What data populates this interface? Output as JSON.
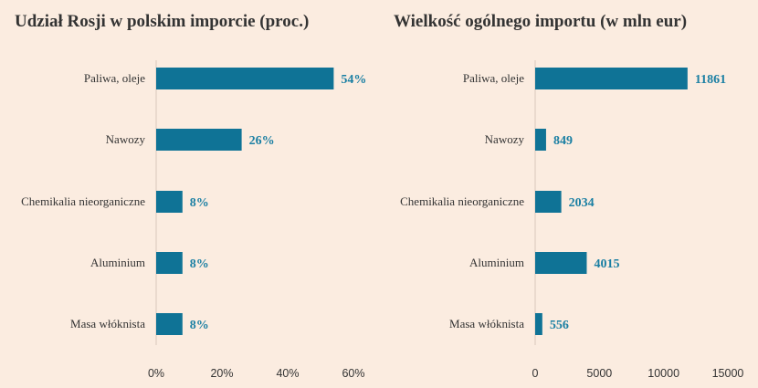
{
  "chart_data": [
    {
      "type": "bar",
      "orientation": "horizontal",
      "title": "Udział Rosji w polskim imporcie (proc.)",
      "categories": [
        "Paliwa, oleje",
        "Nawozy",
        "Chemikalia nieorganiczne",
        "Aluminium",
        "Masa włóknista"
      ],
      "values": [
        54,
        26,
        8,
        8,
        8
      ],
      "value_labels": [
        "54%",
        "26%",
        "8%",
        "8%",
        "8%"
      ],
      "xlim": [
        0,
        60
      ],
      "xticks": [
        0,
        20,
        40,
        60
      ],
      "xtick_labels": [
        "0%",
        "20%",
        "40%",
        "60%"
      ],
      "grid": false,
      "bar_color": "#0f7396",
      "label_color": "#1a7fa3"
    },
    {
      "type": "bar",
      "orientation": "horizontal",
      "title": "Wielkość ogólnego importu (w mln eur)",
      "categories": [
        "Paliwa, oleje",
        "Nawozy",
        "Chemikalia nieorganiczne",
        "Aluminium",
        "Masa włóknista"
      ],
      "values": [
        11861,
        849,
        2034,
        4015,
        556
      ],
      "value_labels": [
        "11861",
        "849",
        "2034",
        "4015",
        "556"
      ],
      "xlim": [
        0,
        15000
      ],
      "xticks": [
        0,
        5000,
        10000,
        15000
      ],
      "xtick_labels": [
        "0",
        "5000",
        "10000",
        "15000"
      ],
      "grid": false,
      "bar_color": "#0f7396",
      "label_color": "#1a7fa3"
    }
  ]
}
